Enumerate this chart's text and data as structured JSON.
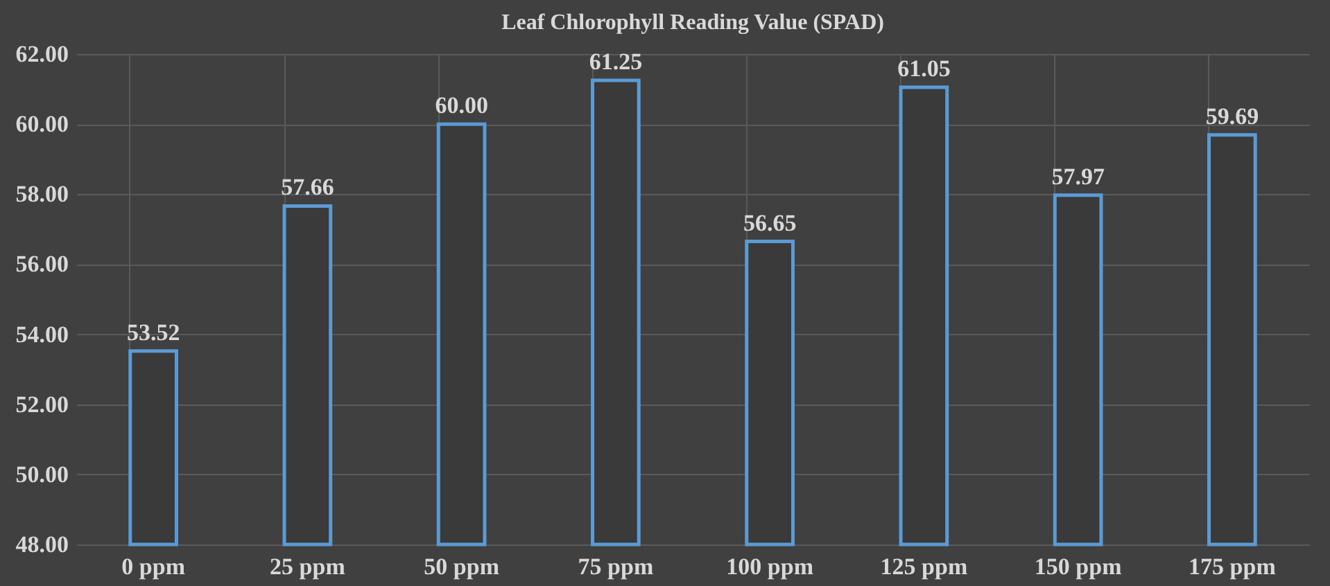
{
  "chart_data": {
    "type": "bar",
    "title": "Leaf Chlorophyll  Reading Value (SPAD)",
    "categories": [
      "0 ppm",
      "25 ppm",
      "50 ppm",
      "75 ppm",
      "100 ppm",
      "125 ppm",
      "150 ppm",
      "175 ppm"
    ],
    "values": [
      53.52,
      57.66,
      60.0,
      61.25,
      56.65,
      61.05,
      57.97,
      59.69
    ],
    "value_labels": [
      "53.52",
      "57.66",
      "60.00",
      "61.25",
      "56.65",
      "61.05",
      "57.97",
      "59.69"
    ],
    "color": "#5b9bd5",
    "ylim": [
      48,
      62
    ],
    "yticks": [
      {
        "value": 48,
        "label": "48.00"
      },
      {
        "value": 50,
        "label": "50.00"
      },
      {
        "value": 52,
        "label": "52.00"
      },
      {
        "value": 54,
        "label": "54.00"
      },
      {
        "value": 56,
        "label": "56.00"
      },
      {
        "value": 58,
        "label": "58.00"
      },
      {
        "value": 60,
        "label": "60.00"
      },
      {
        "value": 62,
        "label": "62.00"
      }
    ],
    "grid": true
  }
}
